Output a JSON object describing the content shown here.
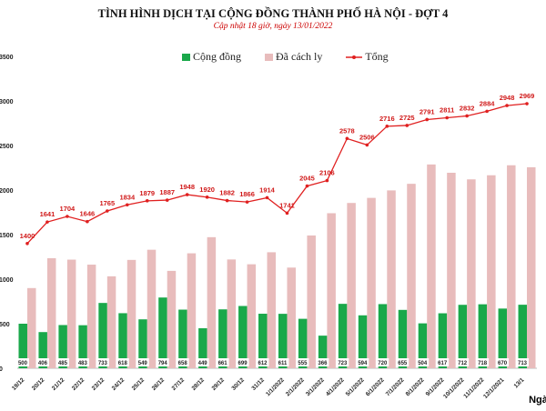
{
  "chart_data": {
    "type": "bar",
    "title": "TÌNH HÌNH DỊCH TẠI CỘNG ĐỒNG THÀNH PHỐ HÀ NỘI - ĐỢT 4",
    "subtitle": "Cập nhật 18 giờ, ngày 13/01/2022",
    "xlabel": "Ngày",
    "ylim": [
      0,
      3500
    ],
    "yticks": [
      0,
      500,
      1000,
      1500,
      2000,
      2500,
      3000,
      3500
    ],
    "legend_position": "top",
    "categories": [
      "19/12",
      "20/12",
      "21/12",
      "22/12",
      "23/12",
      "24/12",
      "25/12",
      "26/12",
      "27/12",
      "28/12",
      "29/12",
      "30/12",
      "31/12",
      "1/1/2022",
      "2/1/2022",
      "3/1/2022",
      "4/1/2022",
      "5/1/2022",
      "6/1/2022",
      "7/1/2022",
      "8/1/2022",
      "9/1/2022",
      "10/1/2022",
      "11/1/2022",
      "12/1/2021",
      "13/1"
    ],
    "series": [
      {
        "name": "Cộng đồng",
        "type": "bar",
        "color": "#1aa84a",
        "values": [
          500,
          406,
          485,
          483,
          733,
          618,
          549,
          794,
          658,
          449,
          661,
          699,
          612,
          611,
          555,
          366,
          723,
          594,
          720,
          655,
          504,
          617,
          712,
          718,
          670,
          713
        ]
      },
      {
        "name": "Đã cách ly",
        "type": "bar",
        "color": "#e8bcbc",
        "values": [
          900,
          1235,
          1219,
          1163,
          1032,
          1216,
          1330,
          1093,
          1290,
          1471,
          1221,
          1167,
          1302,
          1130,
          1490,
          1740,
          1855,
          1912,
          1996,
          2070,
          2287,
          2194,
          2120,
          2166,
          2278,
          2256
        ]
      },
      {
        "name": "Tổng",
        "type": "line",
        "color": "#e02020",
        "values": [
          1400,
          1641,
          1704,
          1646,
          1765,
          1834,
          1879,
          1887,
          1948,
          1920,
          1882,
          1866,
          1914,
          1741,
          2045,
          2106,
          2578,
          2506,
          2716,
          2725,
          2791,
          2811,
          2832,
          2884,
          2948,
          2969
        ]
      }
    ]
  }
}
